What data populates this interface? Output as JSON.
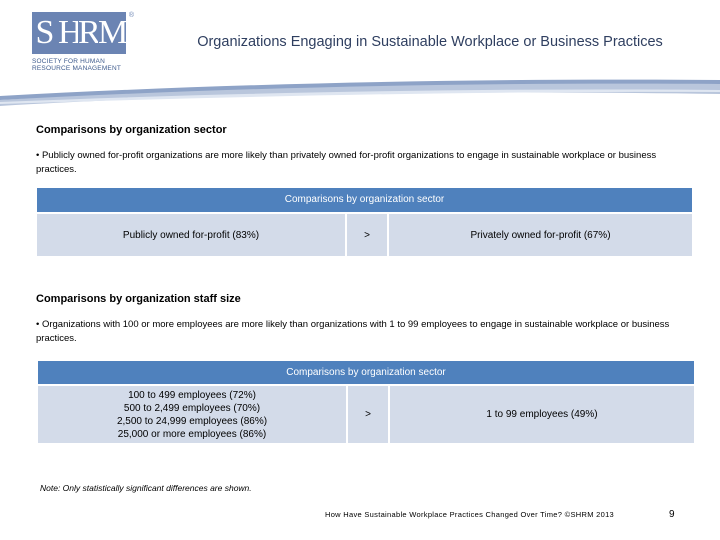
{
  "logo": {
    "letters": [
      "S",
      "H",
      "R",
      "M"
    ],
    "registered": "®",
    "tagline": "SOCIETY FOR HUMAN RESOURCE MANAGEMENT"
  },
  "header": {
    "title": "Organizations Engaging in Sustainable Workplace or Business Practices"
  },
  "section1": {
    "title": "Comparisons by organization sector",
    "bullet": "• Publicly owned for-profit organizations are more likely than privately owned for-profit organizations to engage in sustainable workplace or business practices.",
    "table": {
      "header": "Comparisons by organization sector",
      "left": "Publicly owned for-profit (83%)",
      "op": ">",
      "right": "Privately owned for-profit (67%)"
    }
  },
  "section2": {
    "title": "Comparisons by organization staff size",
    "bullet": "• Organizations with 100 or more employees are more likely than organizations with 1 to 99 employees to engage in sustainable workplace or business practices.",
    "table": {
      "header": "Comparisons by organization sector",
      "left": [
        "100 to 499 employees (72%)",
        "500 to 2,499 employees (70%)",
        "2,500 to 24,999 employees (86%)",
        "25,000 or more employees (86%)"
      ],
      "op": ">",
      "right": "1 to 99 employees (49%)"
    }
  },
  "note": "Note: Only statistically significant differences are shown.",
  "footer": {
    "source": "How Have Sustainable Workplace Practices Changed Over Time? ©SHRM 2013",
    "page": "9"
  },
  "colors": {
    "brand": "#6b84b3",
    "table_header": "#4f81bd",
    "table_cell": "#d3dbe9"
  }
}
